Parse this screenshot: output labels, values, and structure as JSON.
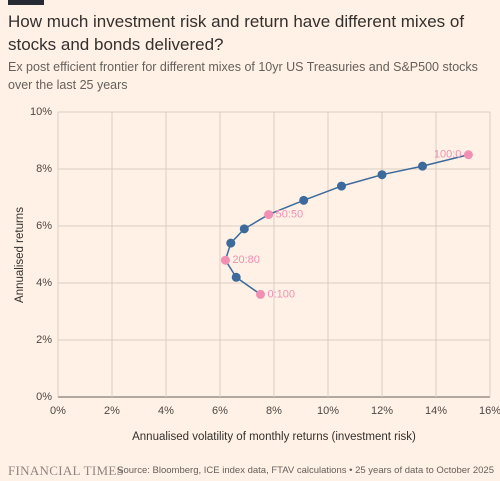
{
  "chart_data": {
    "type": "scatter-line",
    "title": "How much investment risk and return have different mixes of stocks and bonds delivered?",
    "subtitle": "Ex post efficient frontier for different mixes of 10yr US Treasuries and S&P500 stocks over the last 25 years",
    "x_label": "Annualised volatility of monthly returns (investment risk)",
    "y_label": "Annualised returns",
    "x": [
      7.5,
      6.6,
      6.2,
      6.4,
      6.9,
      7.8,
      9.1,
      10.5,
      12.0,
      13.5,
      15.2
    ],
    "series": [
      {
        "values": [
          3.6,
          4.2,
          4.8,
          5.4,
          5.9,
          6.4,
          6.9,
          7.4,
          7.8,
          8.1,
          8.5
        ],
        "color": "#3d6a9c"
      }
    ],
    "point_labels": [
      "0:100",
      null,
      "20:80",
      null,
      null,
      "50:50",
      null,
      null,
      null,
      null,
      "100:0"
    ],
    "label_color": "#f28fb3",
    "xlim": [
      0,
      16
    ],
    "ylim": [
      0,
      10
    ],
    "xticks": [
      {
        "value": 0,
        "label": "0%"
      },
      {
        "value": 2,
        "label": "2%"
      },
      {
        "value": 4,
        "label": "4%"
      },
      {
        "value": 6,
        "label": "6%"
      },
      {
        "value": 8,
        "label": "8%"
      },
      {
        "value": 10,
        "label": "10%"
      },
      {
        "value": 12,
        "label": "12%"
      },
      {
        "value": 14,
        "label": "14%"
      },
      {
        "value": 16,
        "label": "16%"
      }
    ],
    "yticks": [
      {
        "value": 0,
        "label": "0%"
      },
      {
        "value": 2,
        "label": "2%"
      },
      {
        "value": 4,
        "label": "4%"
      },
      {
        "value": 6,
        "label": "6%"
      },
      {
        "value": 8,
        "label": "8%"
      },
      {
        "value": 10,
        "label": "10%"
      }
    ],
    "grid": true
  },
  "footer": {
    "brand": "FINANCIAL TIMES",
    "source": "Source: Bloomberg, ICE index data, FTAV calculations • 25 years of data to October 2025"
  }
}
